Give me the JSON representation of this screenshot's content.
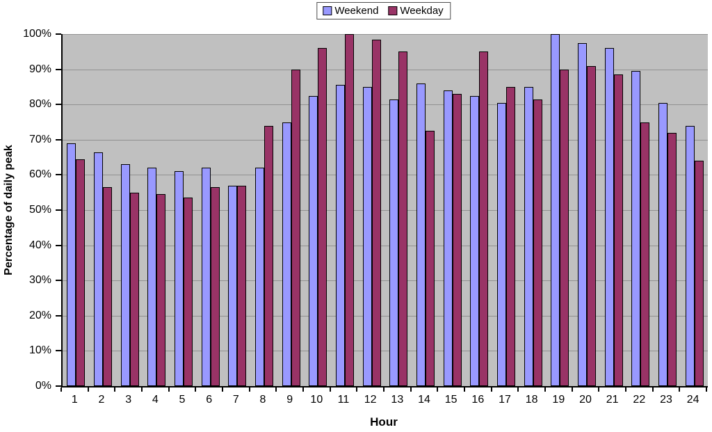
{
  "legend": {
    "items": [
      {
        "label": "Weekend",
        "color": "#9999FF"
      },
      {
        "label": "Weekday",
        "color": "#993366"
      }
    ]
  },
  "chart_data": {
    "type": "bar",
    "categories": [
      1,
      2,
      3,
      4,
      5,
      6,
      7,
      8,
      9,
      10,
      11,
      12,
      13,
      14,
      15,
      16,
      17,
      18,
      19,
      20,
      21,
      22,
      23,
      24
    ],
    "series": [
      {
        "name": "Weekend",
        "color": "#9999FF",
        "values": [
          69,
          66.5,
          63,
          62,
          61,
          62,
          57,
          62,
          75,
          82.5,
          85.5,
          85,
          81.5,
          86,
          84,
          82.5,
          80.5,
          85,
          100,
          97.5,
          96,
          89.5,
          80.5,
          74
        ]
      },
      {
        "name": "Weekday",
        "color": "#993366",
        "values": [
          64.5,
          56.5,
          55,
          54.5,
          53.5,
          56.5,
          57,
          74,
          90,
          96,
          100,
          98.5,
          95,
          72.5,
          83,
          95,
          85,
          81.5,
          90,
          91,
          88.5,
          75,
          72,
          64
        ]
      }
    ],
    "xlabel": "Hour",
    "ylabel": "Percentage of daily peak",
    "ylim": [
      0,
      100
    ],
    "ytick_step": 10,
    "ytick_suffix": "%",
    "grid": true,
    "legend_position": "top-center",
    "plot_bg": "#C0C0C0",
    "gridline_color": "#909090",
    "bar_border_color": "#000000",
    "axis_color": "#000000"
  }
}
